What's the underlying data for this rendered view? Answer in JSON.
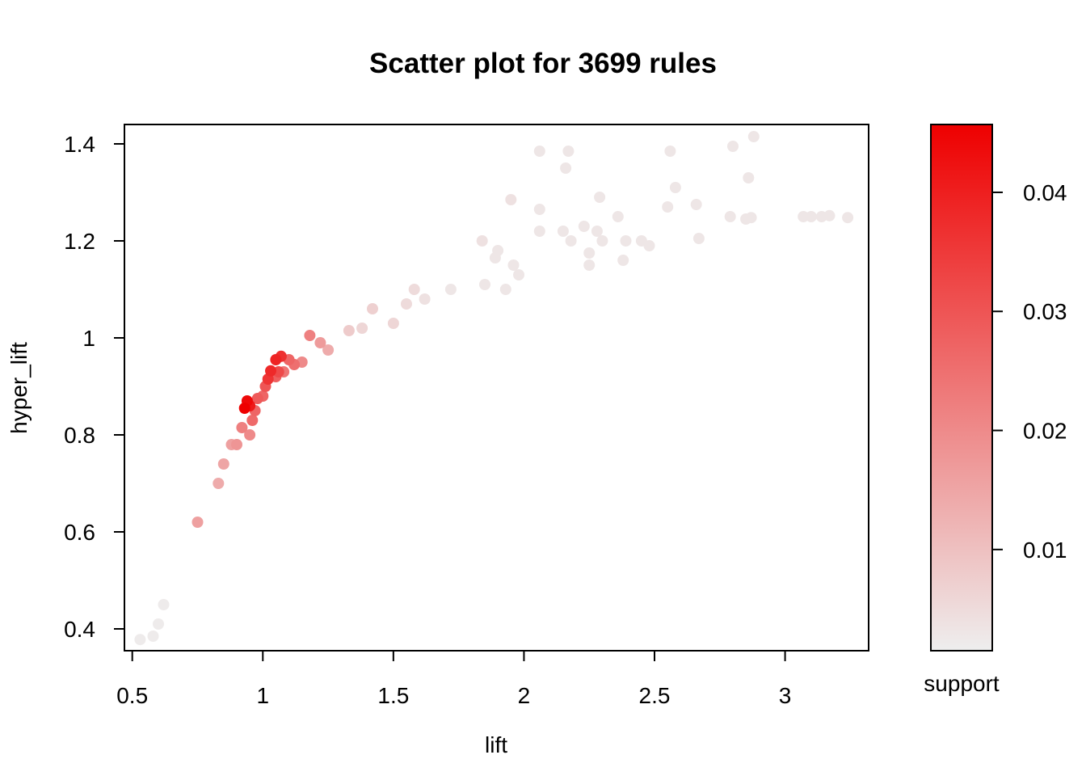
{
  "chart_data": {
    "type": "scatter",
    "title": "Scatter plot for 3699 rules",
    "xlabel": "lift",
    "ylabel": "hyper_lift",
    "xlim": [
      0.47,
      3.32
    ],
    "ylim": [
      0.355,
      1.44
    ],
    "xticks": [
      0.5,
      1,
      1.5,
      2,
      2.5,
      3
    ],
    "xtick_labels": [
      "0.5",
      "1",
      "1.5",
      "2",
      "2.5",
      "3"
    ],
    "yticks": [
      0.4,
      0.6,
      0.8,
      1.0,
      1.2,
      1.4
    ],
    "ytick_labels": [
      "0.4",
      "0.6",
      "0.8",
      "1",
      "1.2",
      "1.4"
    ],
    "grid": false,
    "color_scale": {
      "label": "support",
      "min": 0.0015,
      "max": 0.0457,
      "ticks": [
        0.01,
        0.02,
        0.03,
        0.04
      ],
      "tick_labels": [
        "0.01",
        "0.02",
        "0.03",
        "0.04"
      ],
      "low_color": "#eeeeee",
      "high_color": "#ee0000"
    },
    "points": [
      [
        0.93,
        0.855,
        0.0457
      ],
      [
        0.94,
        0.87,
        0.044
      ],
      [
        0.95,
        0.86,
        0.041
      ],
      [
        1.02,
        0.915,
        0.036
      ],
      [
        1.03,
        0.932,
        0.038
      ],
      [
        1.05,
        0.955,
        0.039
      ],
      [
        1.07,
        0.962,
        0.037
      ],
      [
        1.06,
        0.93,
        0.032
      ],
      [
        1.01,
        0.9,
        0.03
      ],
      [
        0.98,
        0.875,
        0.029
      ],
      [
        0.97,
        0.85,
        0.027
      ],
      [
        0.96,
        0.83,
        0.026
      ],
      [
        1.1,
        0.955,
        0.027
      ],
      [
        1.12,
        0.945,
        0.025
      ],
      [
        1.08,
        0.93,
        0.024
      ],
      [
        1.18,
        1.005,
        0.022
      ],
      [
        0.92,
        0.815,
        0.022
      ],
      [
        0.9,
        0.78,
        0.018
      ],
      [
        0.88,
        0.78,
        0.016
      ],
      [
        0.85,
        0.74,
        0.015
      ],
      [
        0.83,
        0.7,
        0.014
      ],
      [
        0.75,
        0.62,
        0.016
      ],
      [
        1.05,
        0.92,
        0.028
      ],
      [
        1.0,
        0.88,
        0.027
      ],
      [
        1.22,
        0.99,
        0.017
      ],
      [
        1.25,
        0.975,
        0.014
      ],
      [
        1.15,
        0.95,
        0.02
      ],
      [
        0.95,
        0.8,
        0.02
      ],
      [
        1.33,
        1.015,
        0.008
      ],
      [
        1.38,
        1.02,
        0.006
      ],
      [
        1.42,
        1.06,
        0.007
      ],
      [
        1.5,
        1.03,
        0.006
      ],
      [
        1.58,
        1.1,
        0.005
      ],
      [
        1.55,
        1.07,
        0.005
      ],
      [
        1.62,
        1.08,
        0.004
      ],
      [
        1.72,
        1.1,
        0.003
      ],
      [
        1.85,
        1.11,
        0.003
      ],
      [
        1.93,
        1.1,
        0.003
      ],
      [
        1.95,
        1.285,
        0.004
      ],
      [
        1.84,
        1.2,
        0.004
      ],
      [
        1.89,
        1.165,
        0.003
      ],
      [
        1.9,
        1.18,
        0.003
      ],
      [
        1.98,
        1.13,
        0.003
      ],
      [
        2.06,
        1.385,
        0.003
      ],
      [
        2.16,
        1.35,
        0.003
      ],
      [
        2.17,
        1.385,
        0.003
      ],
      [
        2.06,
        1.22,
        0.003
      ],
      [
        2.15,
        1.22,
        0.003
      ],
      [
        2.18,
        1.2,
        0.003
      ],
      [
        2.25,
        1.175,
        0.003
      ],
      [
        2.29,
        1.29,
        0.003
      ],
      [
        2.28,
        1.22,
        0.003
      ],
      [
        2.3,
        1.2,
        0.003
      ],
      [
        2.36,
        1.25,
        0.003
      ],
      [
        2.39,
        1.2,
        0.003
      ],
      [
        2.45,
        1.2,
        0.003
      ],
      [
        2.48,
        1.19,
        0.003
      ],
      [
        2.56,
        1.385,
        0.003
      ],
      [
        2.58,
        1.31,
        0.003
      ],
      [
        2.55,
        1.27,
        0.003
      ],
      [
        2.66,
        1.275,
        0.003
      ],
      [
        2.67,
        1.205,
        0.003
      ],
      [
        2.8,
        1.395,
        0.003
      ],
      [
        2.86,
        1.33,
        0.003
      ],
      [
        2.88,
        1.415,
        0.003
      ],
      [
        2.79,
        1.25,
        0.003
      ],
      [
        2.85,
        1.245,
        0.003
      ],
      [
        2.87,
        1.248,
        0.003
      ],
      [
        3.07,
        1.25,
        0.003
      ],
      [
        3.1,
        1.25,
        0.003
      ],
      [
        3.14,
        1.25,
        0.003
      ],
      [
        3.17,
        1.252,
        0.003
      ],
      [
        3.24,
        1.248,
        0.003
      ],
      [
        2.06,
        1.265,
        0.003
      ],
      [
        1.96,
        1.15,
        0.003
      ],
      [
        2.23,
        1.23,
        0.003
      ],
      [
        2.25,
        1.15,
        0.003
      ],
      [
        2.38,
        1.16,
        0.003
      ],
      [
        0.53,
        0.378,
        0.002
      ],
      [
        0.58,
        0.385,
        0.002
      ],
      [
        0.6,
        0.41,
        0.002
      ],
      [
        0.62,
        0.45,
        0.002
      ]
    ]
  }
}
